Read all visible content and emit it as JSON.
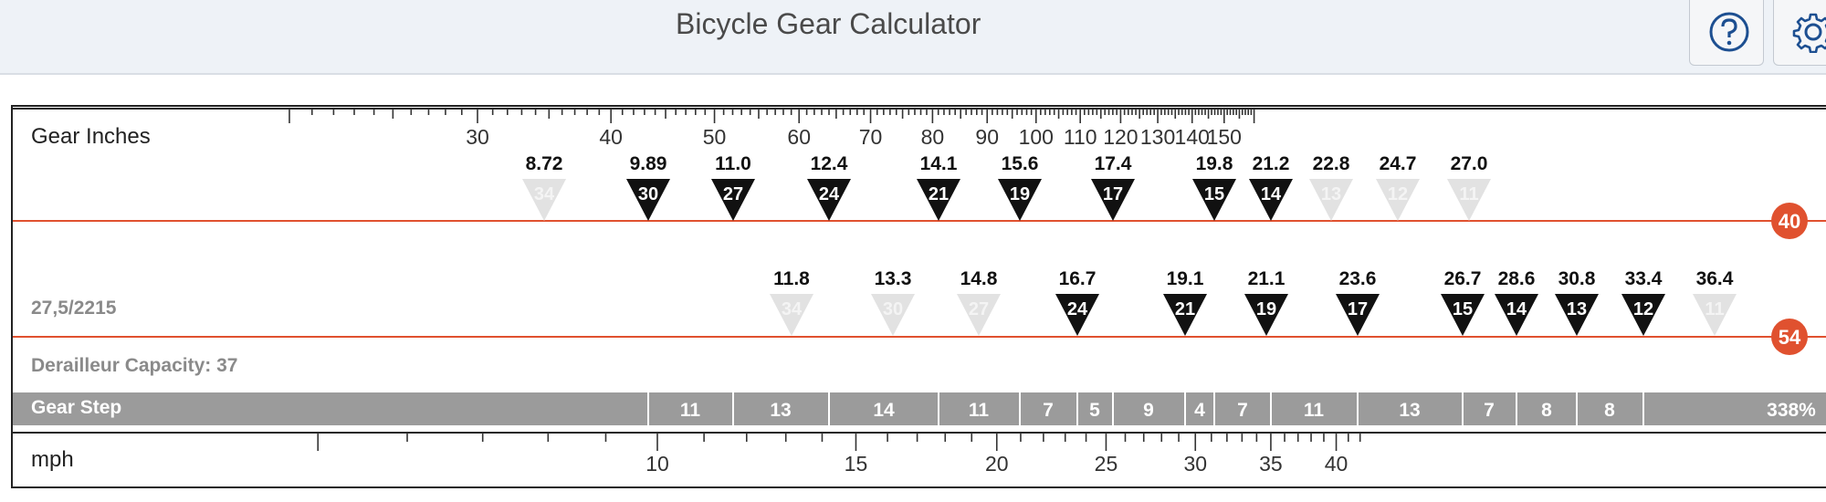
{
  "header": {
    "title": "Bicycle Gear Calculator",
    "help_icon": "help-circle-icon",
    "settings_icon": "gear-icon"
  },
  "gear_inches": {
    "label": "Gear Inches",
    "scale_labels": [
      "30",
      "40",
      "50",
      "60",
      "70",
      "80",
      "90",
      "100",
      "110",
      "120",
      "130",
      "140",
      "150"
    ],
    "scale_values": [
      30,
      40,
      50,
      60,
      70,
      80,
      90,
      100,
      110,
      120,
      130,
      140,
      150
    ]
  },
  "tire_size": "27,5/2215",
  "derailleur_capacity": "Derailleur Capacity: 37",
  "chainrings": [
    {
      "teeth": "40",
      "gears": [
        {
          "value": "8.72",
          "cog": "34",
          "active": false
        },
        {
          "value": "9.89",
          "cog": "30",
          "active": true
        },
        {
          "value": "11.0",
          "cog": "27",
          "active": true
        },
        {
          "value": "12.4",
          "cog": "24",
          "active": true
        },
        {
          "value": "14.1",
          "cog": "21",
          "active": true
        },
        {
          "value": "15.6",
          "cog": "19",
          "active": true
        },
        {
          "value": "17.4",
          "cog": "17",
          "active": true
        },
        {
          "value": "19.8",
          "cog": "15",
          "active": true
        },
        {
          "value": "21.2",
          "cog": "14",
          "active": true
        },
        {
          "value": "22.8",
          "cog": "13",
          "active": false
        },
        {
          "value": "24.7",
          "cog": "12",
          "active": false
        },
        {
          "value": "27.0",
          "cog": "11",
          "active": false
        }
      ]
    },
    {
      "teeth": "54",
      "gears": [
        {
          "value": "11.8",
          "cog": "34",
          "active": false
        },
        {
          "value": "13.3",
          "cog": "30",
          "active": false
        },
        {
          "value": "14.8",
          "cog": "27",
          "active": false
        },
        {
          "value": "16.7",
          "cog": "24",
          "active": true
        },
        {
          "value": "19.1",
          "cog": "21",
          "active": true
        },
        {
          "value": "21.1",
          "cog": "19",
          "active": true
        },
        {
          "value": "23.6",
          "cog": "17",
          "active": true
        },
        {
          "value": "26.7",
          "cog": "15",
          "active": true
        },
        {
          "value": "28.6",
          "cog": "14",
          "active": true
        },
        {
          "value": "30.8",
          "cog": "13",
          "active": true
        },
        {
          "value": "33.4",
          "cog": "12",
          "active": true
        },
        {
          "value": "36.4",
          "cog": "11",
          "active": false
        }
      ]
    }
  ],
  "gear_step": {
    "label": "Gear Step",
    "steps": [
      "11",
      "13",
      "14",
      "11",
      "7",
      "5",
      "9",
      "4",
      "7",
      "11",
      "13",
      "7",
      "8",
      "8"
    ],
    "total": "338%"
  },
  "speed": {
    "label": "mph",
    "scale_labels": [
      "10",
      "15",
      "20",
      "25",
      "30",
      "35",
      "40"
    ],
    "scale_values": [
      10,
      15,
      20,
      25,
      30,
      35,
      40
    ]
  },
  "colors": {
    "accent": "#e0512f",
    "active_marker": "#111111",
    "inactive_marker": "#e2e2e2",
    "step_band": "#9b9b9b"
  }
}
